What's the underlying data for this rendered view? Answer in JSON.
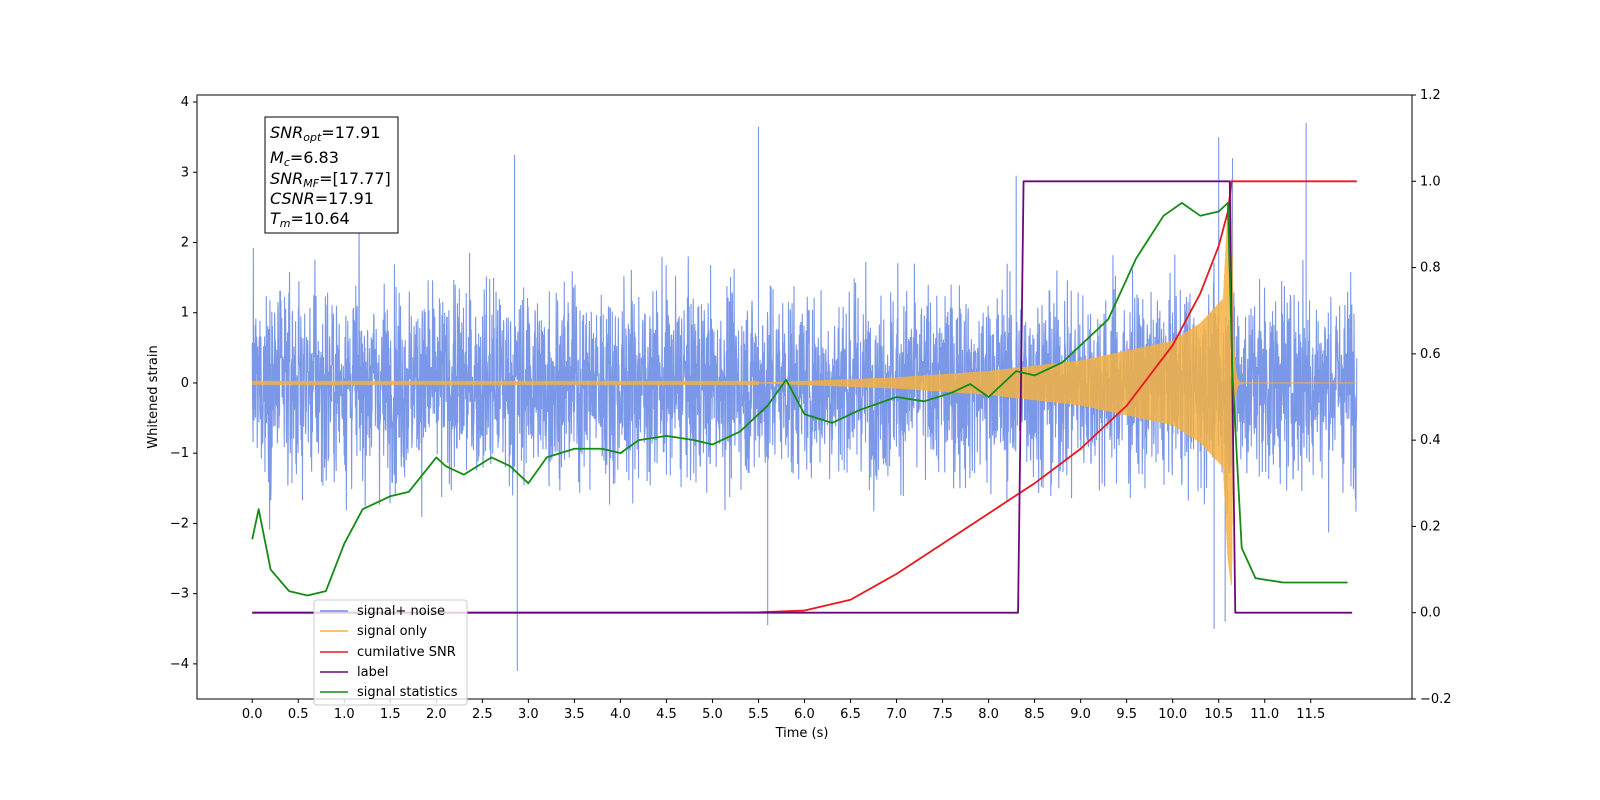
{
  "chart_data": {
    "type": "line",
    "title": "",
    "xlabel": "Time (s)",
    "ylabel": "Whitened strain",
    "xlim": [
      -0.6,
      12.6
    ],
    "ylim": [
      -4.5,
      4.1
    ],
    "y2lim": [
      -0.2,
      1.2
    ],
    "grid": false,
    "legend_position": "lower-left",
    "x_ticks": [
      "0.0",
      "0.5",
      "1.0",
      "1.5",
      "2.0",
      "2.5",
      "3.0",
      "3.5",
      "4.0",
      "4.5",
      "5.0",
      "5.5",
      "6.0",
      "6.5",
      "7.0",
      "7.5",
      "8.0",
      "8.5",
      "9.0",
      "9.5",
      "10.0",
      "10.5",
      "11.0",
      "11.5"
    ],
    "y_ticks": [
      "4",
      "3",
      "2",
      "1",
      "0",
      "−1",
      "−2",
      "−3",
      "−4"
    ],
    "y2_ticks": [
      "1.2",
      "1.0",
      "0.8",
      "0.6",
      "0.4",
      "0.2",
      "0.0",
      "−0.2"
    ],
    "stats": {
      "snr_opt_sym": "SNR",
      "snr_opt_sub": "opt",
      "snr_opt_val": "=17.91",
      "mc_sym": "M",
      "mc_sub": "c",
      "mc_val": "=6.83",
      "snr_mf_sym": "SNR",
      "snr_mf_sub": "MF",
      "snr_mf_val": "=[17.77]",
      "csnr_sym": "CSNR",
      "csnr_val": "=17.91",
      "tm_sym": "T",
      "tm_sub": "m",
      "tm_val": "=10.64"
    },
    "series": [
      {
        "name": "signal+ noise",
        "color": "#6b8ce6",
        "axis": "left",
        "kind": "noise",
        "x_range": [
          0.0,
          12.0
        ],
        "envelope_typical": [
          -1.6,
          1.6
        ],
        "spikes": [
          [
            5.5,
            3.65
          ],
          [
            2.85,
            3.25
          ],
          [
            8.3,
            2.95
          ],
          [
            10.5,
            3.5
          ],
          [
            10.65,
            3.2
          ],
          [
            11.45,
            3.7
          ],
          [
            2.88,
            -4.1
          ],
          [
            5.6,
            -3.45
          ],
          [
            10.45,
            -3.5
          ],
          [
            10.57,
            -3.4
          ]
        ]
      },
      {
        "name": "signal only",
        "color": "#f5b041",
        "axis": "left",
        "kind": "chirp",
        "x_range": [
          0.0,
          12.0
        ],
        "t_merger": 10.64,
        "amp_samples": [
          [
            5.5,
            0.005
          ],
          [
            6.0,
            0.03
          ],
          [
            7.0,
            0.08
          ],
          [
            8.0,
            0.17
          ],
          [
            9.0,
            0.32
          ],
          [
            10.0,
            0.6
          ],
          [
            10.3,
            0.85
          ],
          [
            10.55,
            1.2
          ],
          [
            10.6,
            2.5
          ],
          [
            10.64,
            2.9
          ]
        ]
      },
      {
        "name": "cumilative SNR",
        "color": "#e8181c",
        "axis": "right",
        "x": [
          0.0,
          5.0,
          5.5,
          6.0,
          6.5,
          7.0,
          7.5,
          8.0,
          8.5,
          9.0,
          9.5,
          10.0,
          10.3,
          10.5,
          10.6,
          10.64,
          12.0
        ],
        "values": [
          0.0,
          0.0,
          0.001,
          0.005,
          0.03,
          0.09,
          0.16,
          0.23,
          0.3,
          0.38,
          0.48,
          0.62,
          0.74,
          0.85,
          0.93,
          1.0,
          1.0
        ]
      },
      {
        "name": "label",
        "color": "#6a0a7a",
        "axis": "right",
        "x": [
          0.0,
          8.32,
          8.38,
          10.62,
          10.68,
          11.95
        ],
        "values": [
          0.0,
          0.0,
          1.0,
          1.0,
          0.0,
          0.0
        ]
      },
      {
        "name": "signal statistics",
        "color": "#158c15",
        "axis": "right",
        "x": [
          0.0,
          0.07,
          0.2,
          0.4,
          0.6,
          0.8,
          1.0,
          1.2,
          1.5,
          1.7,
          2.0,
          2.1,
          2.3,
          2.6,
          2.8,
          3.0,
          3.2,
          3.5,
          3.8,
          4.0,
          4.2,
          4.5,
          4.8,
          5.0,
          5.3,
          5.6,
          5.8,
          6.0,
          6.3,
          6.6,
          7.0,
          7.3,
          7.6,
          7.8,
          8.0,
          8.3,
          8.5,
          8.8,
          9.0,
          9.3,
          9.6,
          9.9,
          10.1,
          10.3,
          10.5,
          10.6,
          10.65,
          10.75,
          10.9,
          11.2,
          11.5,
          11.8,
          11.9
        ],
        "values": [
          0.17,
          0.24,
          0.1,
          0.05,
          0.04,
          0.05,
          0.16,
          0.24,
          0.27,
          0.28,
          0.36,
          0.34,
          0.32,
          0.36,
          0.34,
          0.3,
          0.36,
          0.38,
          0.38,
          0.37,
          0.4,
          0.41,
          0.4,
          0.39,
          0.42,
          0.48,
          0.54,
          0.46,
          0.44,
          0.47,
          0.5,
          0.49,
          0.51,
          0.53,
          0.5,
          0.56,
          0.55,
          0.58,
          0.62,
          0.68,
          0.82,
          0.92,
          0.95,
          0.92,
          0.93,
          0.95,
          0.55,
          0.15,
          0.08,
          0.07,
          0.07,
          0.07,
          0.07
        ]
      }
    ]
  }
}
